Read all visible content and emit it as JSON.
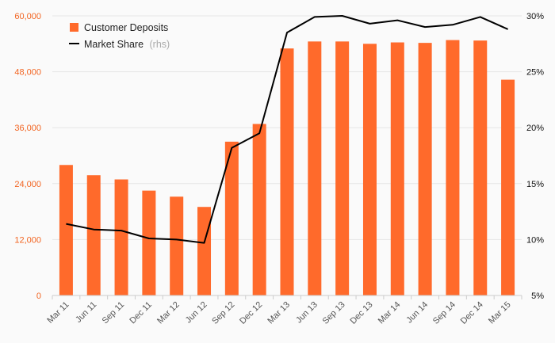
{
  "chart_data": {
    "type": "bar+line",
    "categories": [
      "Mar 11",
      "Jun 11",
      "Sep 11",
      "Dec 11",
      "Mar 12",
      "Jun 12",
      "Sep 12",
      "Dec 12",
      "Mar 13",
      "Jun 13",
      "Sep 13",
      "Dec 13",
      "Mar 14",
      "Jun 14",
      "Sep 14",
      "Dec 14",
      "Mar 15"
    ],
    "series": [
      {
        "name": "Customer Deposits",
        "type": "bar",
        "axis": "left",
        "color": "#ff6a2b",
        "values": [
          28000,
          25800,
          24900,
          22500,
          21200,
          19000,
          33000,
          36800,
          53000,
          54500,
          54500,
          54000,
          54300,
          54200,
          54800,
          54700,
          46300
        ]
      },
      {
        "name": "Market Share",
        "name_note": "(rhs)",
        "type": "line",
        "axis": "right",
        "color": "#000000",
        "values": [
          11.4,
          10.9,
          10.8,
          10.1,
          10.0,
          9.7,
          18.2,
          19.5,
          28.5,
          29.9,
          30.0,
          29.3,
          29.6,
          29.0,
          29.2,
          29.9,
          28.8
        ]
      }
    ],
    "y_left": {
      "ylim": [
        0,
        60000
      ],
      "ticks": [
        0,
        12000,
        24000,
        36000,
        48000,
        60000
      ],
      "tick_labels": [
        "0",
        "12,000",
        "24,000",
        "36,000",
        "48,000",
        "60,000"
      ]
    },
    "y_right": {
      "ylim": [
        5,
        30
      ],
      "ticks": [
        5,
        10,
        15,
        20,
        25,
        30
      ],
      "tick_labels": [
        "5%",
        "10%",
        "15%",
        "20%",
        "25%",
        "30%"
      ]
    },
    "grid": true,
    "legend_position": "top-left",
    "title": "",
    "xlabel": "",
    "ylabel": ""
  }
}
